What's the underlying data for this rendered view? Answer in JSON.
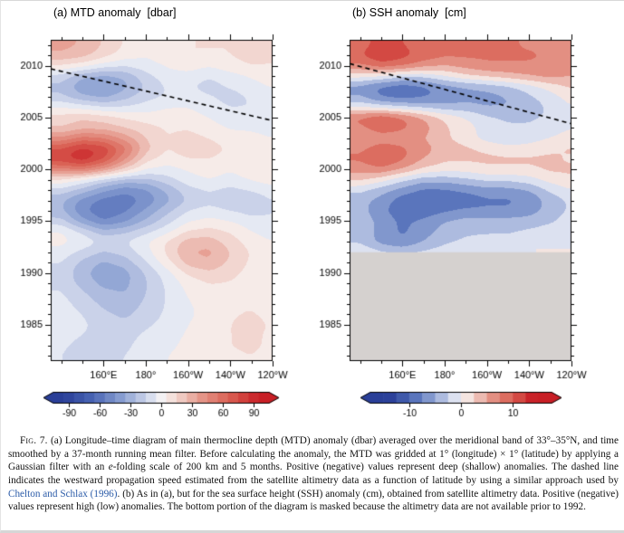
{
  "colors": {
    "link": "#2b5ba8",
    "mask_gray": "#d5d1cf",
    "frame": "#000000",
    "colormap_stops": [
      {
        "v": -1.0,
        "c": "#2a3f98"
      },
      {
        "v": -0.7,
        "c": "#4a66b4"
      },
      {
        "v": -0.4,
        "c": "#8ba0d2"
      },
      {
        "v": -0.15,
        "c": "#ccd4ea"
      },
      {
        "v": -0.02,
        "c": "#eef0f6"
      },
      {
        "v": 0.02,
        "c": "#f7f2ef"
      },
      {
        "v": 0.15,
        "c": "#f2d8d2"
      },
      {
        "v": 0.4,
        "c": "#e5988b"
      },
      {
        "v": 0.7,
        "c": "#d95f52"
      },
      {
        "v": 1.0,
        "c": "#c81f26"
      }
    ]
  },
  "caption": {
    "segments": [
      {
        "text": "Fig. 7.",
        "style": "smallcaps"
      },
      {
        "text": " (a) Longitude–time diagram of main thermocline depth (MTD) anomaly (dbar) averaged over the meridional band of 33°–35°N, and time smoothed by a 37-month running mean filter. Before calculating the anomaly, the MTD was gridded at 1° (longitude) × 1° (latitude) by applying a Gaussian filter with an ",
        "style": "normal"
      },
      {
        "text": "e",
        "style": "italic"
      },
      {
        "text": "-folding scale of 200 km and 5 months. Positive (negative) values represent deep (shallow) anomalies. The dashed line indicates the westward propagation speed estimated from the satellite altimetry data as a function of latitude by using a similar approach used by ",
        "style": "normal"
      },
      {
        "text": "Chelton and Schlax (1996)",
        "style": "link"
      },
      {
        "text": ". (b) As in (a), but for the sea surface height (SSH) anomaly (cm), obtained from satellite altimetry data. Positive (negative) values represent high (low) anomalies. The bottom portion of the diagram is masked because the altimetry data are not available prior to 1992.",
        "style": "normal"
      }
    ]
  },
  "chart_data": [
    {
      "type": "heatmap",
      "title": "(a) MTD anomaly  [dbar]",
      "units": "dbar",
      "x_range": [
        135,
        240
      ],
      "y_range": [
        1981.5,
        2012.5
      ],
      "x_ticks": {
        "values": [
          160,
          180,
          200,
          220,
          240
        ],
        "labels": [
          "160°E",
          "180°",
          "160°W",
          "140°W",
          "120°W"
        ]
      },
      "y_ticks": [
        1985,
        1990,
        1995,
        2000,
        2005,
        2010
      ],
      "lons": [
        140,
        150,
        160,
        170,
        180,
        190,
        200,
        210,
        220,
        230,
        240
      ],
      "years": [
        1981,
        1982,
        1983,
        1984,
        1985,
        1986,
        1987,
        1988,
        1989,
        1990,
        1991,
        1992,
        1993,
        1994,
        1995,
        1996,
        1997,
        1998,
        1999,
        2000,
        2001,
        2002,
        2003,
        2004,
        2005,
        2006,
        2007,
        2008,
        2009,
        2010,
        2011,
        2012
      ],
      "values": [
        [
          -8,
          -12,
          -12,
          -8,
          -4,
          0,
          2,
          4,
          6,
          8,
          6
        ],
        [
          -10,
          -15,
          -15,
          -10,
          -5,
          0,
          3,
          5,
          8,
          10,
          6
        ],
        [
          -8,
          -14,
          -16,
          -12,
          -6,
          -2,
          2,
          6,
          10,
          12,
          8
        ],
        [
          -5,
          -10,
          -15,
          -14,
          -8,
          -3,
          1,
          5,
          10,
          12,
          8
        ],
        [
          -3,
          -8,
          -14,
          -18,
          -12,
          -6,
          0,
          5,
          10,
          13,
          9
        ],
        [
          -4,
          -10,
          -18,
          -22,
          -16,
          -8,
          -2,
          4,
          9,
          11,
          7
        ],
        [
          -6,
          -14,
          -22,
          -26,
          -18,
          -9,
          -1,
          4,
          8,
          9,
          5
        ],
        [
          -9,
          -18,
          -27,
          -30,
          -20,
          -9,
          1,
          6,
          7,
          7,
          4
        ],
        [
          -12,
          -24,
          -33,
          -33,
          -21,
          -8,
          4,
          10,
          9,
          6,
          2
        ],
        [
          -13,
          -27,
          -37,
          -34,
          -19,
          -4,
          12,
          18,
          13,
          6,
          1
        ],
        [
          -10,
          -23,
          -32,
          -26,
          -11,
          6,
          24,
          28,
          18,
          8,
          1
        ],
        [
          -4,
          -13,
          -21,
          -16,
          -4,
          12,
          30,
          33,
          20,
          9,
          3
        ],
        [
          3,
          -3,
          -11,
          -10,
          -1,
          11,
          25,
          26,
          15,
          5,
          0
        ],
        [
          1,
          -12,
          -26,
          -22,
          -13,
          -3,
          11,
          14,
          9,
          0,
          -4
        ],
        [
          -16,
          -36,
          -50,
          -42,
          -28,
          -14,
          -1,
          3,
          0,
          -6,
          -9
        ],
        [
          -28,
          -48,
          -58,
          -52,
          -38,
          -23,
          -10,
          -5,
          -10,
          -14,
          -10
        ],
        [
          -28,
          -44,
          -54,
          -57,
          -47,
          -33,
          -19,
          -14,
          -19,
          -18,
          -10
        ],
        [
          -14,
          -24,
          -38,
          -47,
          -42,
          -28,
          -14,
          -9,
          -13,
          -9,
          -4
        ],
        [
          8,
          -2,
          -14,
          -23,
          -23,
          -14,
          -4,
          0,
          -4,
          1,
          5
        ],
        [
          48,
          52,
          38,
          18,
          0,
          -4,
          1,
          5,
          1,
          6,
          9
        ],
        [
          78,
          88,
          72,
          42,
          14,
          5,
          10,
          10,
          6,
          9,
          9
        ],
        [
          72,
          84,
          78,
          54,
          24,
          10,
          15,
          14,
          9,
          9,
          5
        ],
        [
          42,
          54,
          50,
          36,
          20,
          10,
          14,
          10,
          5,
          4,
          0
        ],
        [
          20,
          26,
          26,
          20,
          14,
          9,
          9,
          4,
          -1,
          -2,
          -5
        ],
        [
          14,
          19,
          15,
          9,
          5,
          4,
          4,
          0,
          -6,
          -6,
          -9
        ],
        [
          0,
          -4,
          -9,
          -9,
          -5,
          0,
          0,
          -5,
          -10,
          -10,
          -9
        ],
        [
          -18,
          -28,
          -33,
          -24,
          -14,
          -9,
          -5,
          -9,
          -14,
          -9,
          -4
        ],
        [
          -23,
          -38,
          -43,
          -33,
          -19,
          -9,
          -9,
          -14,
          -9,
          -4,
          1
        ],
        [
          -14,
          -28,
          -33,
          -28,
          -14,
          -4,
          -4,
          -9,
          -4,
          1,
          6
        ],
        [
          9,
          4,
          -5,
          -9,
          -4,
          1,
          5,
          1,
          6,
          10,
          10
        ],
        [
          28,
          24,
          14,
          5,
          1,
          5,
          10,
          10,
          10,
          14,
          10
        ],
        [
          33,
          29,
          19,
          9,
          5,
          5,
          10,
          10,
          10,
          14,
          10
        ]
      ],
      "contour_interval": 10,
      "value_max": 95,
      "colorbar": {
        "half_range": 105,
        "ticks": [
          -90,
          -60,
          -30,
          0,
          30,
          60,
          90
        ]
      },
      "dashed_line": {
        "year_at_west": 2009.7,
        "year_at_east": 2004.7
      },
      "mask_before_year": null
    },
    {
      "type": "heatmap",
      "title": "(b) SSH anomaly  [cm]",
      "units": "cm",
      "x_range": [
        135,
        240
      ],
      "y_range": [
        1981.5,
        2012.5
      ],
      "x_ticks": {
        "values": [
          160,
          180,
          200,
          220,
          240
        ],
        "labels": [
          "160°E",
          "180°",
          "160°W",
          "140°W",
          "120°W"
        ]
      },
      "y_ticks": [
        1985,
        1990,
        1995,
        2000,
        2005,
        2010
      ],
      "lons": [
        140,
        150,
        160,
        170,
        180,
        190,
        200,
        210,
        220,
        230,
        240
      ],
      "years": [
        1981,
        1982,
        1983,
        1984,
        1985,
        1986,
        1987,
        1988,
        1989,
        1990,
        1991,
        1992,
        1993,
        1994,
        1995,
        1996,
        1997,
        1998,
        1999,
        2000,
        2001,
        2002,
        2003,
        2004,
        2005,
        2006,
        2007,
        2008,
        2009,
        2010,
        2011,
        2012
      ],
      "values": [
        [
          0,
          0,
          0,
          0,
          0,
          0,
          0,
          0,
          0,
          0,
          0
        ],
        [
          0,
          0,
          0,
          0,
          0,
          0,
          0,
          0,
          0,
          0,
          0
        ],
        [
          0,
          0,
          0,
          0,
          0,
          0,
          0,
          0,
          0,
          0,
          0
        ],
        [
          0,
          0,
          0,
          0,
          0,
          0,
          0,
          0,
          0,
          0,
          0
        ],
        [
          0,
          0,
          0,
          0,
          0,
          0,
          0,
          0,
          0,
          0,
          0
        ],
        [
          0,
          0,
          0,
          0,
          0,
          0,
          0,
          0,
          0,
          0,
          0
        ],
        [
          0,
          0,
          0,
          0,
          0,
          0,
          0,
          0,
          0,
          0,
          0
        ],
        [
          0,
          0,
          0,
          0,
          0,
          0,
          0,
          0,
          0,
          0,
          0
        ],
        [
          0,
          0,
          0,
          0,
          0,
          0,
          0,
          0,
          0,
          0,
          0
        ],
        [
          0,
          0,
          0,
          0,
          0,
          0,
          0,
          0,
          0,
          0,
          0
        ],
        [
          0,
          0,
          0,
          0,
          0,
          0,
          0,
          0,
          0,
          0,
          0
        ],
        [
          0,
          -2,
          -3,
          -2,
          -1,
          0,
          0,
          0,
          0,
          0,
          0
        ],
        [
          -3,
          -6,
          -7,
          -5,
          -3,
          -2,
          -1,
          -1,
          0,
          0,
          0
        ],
        [
          -3,
          -6,
          -8,
          -6,
          -4,
          -3,
          -3,
          -3,
          -2,
          -1,
          -1
        ],
        [
          -3,
          -6,
          -8,
          -7,
          -5,
          -4,
          -4,
          -4,
          -4,
          -3,
          -1
        ],
        [
          -4,
          -7,
          -9,
          -9,
          -8,
          -7,
          -7,
          -7,
          -6,
          -4,
          -2
        ],
        [
          -4,
          -6,
          -9,
          -10,
          -9,
          -9,
          -8,
          -8,
          -7,
          -4,
          -2
        ],
        [
          -2,
          -4,
          -6,
          -8,
          -8,
          -7,
          -6,
          -6,
          -5,
          -2,
          0
        ],
        [
          3,
          1,
          -2,
          -4,
          -4,
          -3,
          -2,
          -2,
          -1,
          1,
          2
        ],
        [
          6,
          7,
          5,
          2,
          1,
          1,
          2,
          2,
          2,
          3,
          3
        ],
        [
          8,
          10,
          8,
          5,
          3,
          3,
          3,
          3,
          3,
          3,
          2
        ],
        [
          7,
          9,
          8,
          6,
          4,
          3,
          2,
          1,
          1,
          2,
          3
        ],
        [
          5,
          6,
          6,
          5,
          3,
          1,
          -1,
          -2,
          -1,
          0,
          1
        ],
        [
          7,
          9,
          8,
          6,
          3,
          1,
          -1,
          -2,
          -2,
          -1,
          0
        ],
        [
          8,
          10,
          8,
          5,
          2,
          0,
          -2,
          -3,
          -3,
          -2,
          -1
        ],
        [
          0,
          -1,
          -2,
          -3,
          -4,
          -4,
          -5,
          -5,
          -4,
          -2,
          0
        ],
        [
          -5,
          -8,
          -9,
          -8,
          -7,
          -6,
          -6,
          -5,
          -3,
          -1,
          1
        ],
        [
          -6,
          -8,
          -9,
          -8,
          -6,
          -5,
          -4,
          -3,
          -1,
          1,
          3
        ],
        [
          1,
          0,
          -2,
          -2,
          0,
          2,
          3,
          4,
          5,
          6,
          5
        ],
        [
          7,
          9,
          8,
          6,
          5,
          6,
          7,
          7,
          7,
          7,
          6
        ],
        [
          10,
          12,
          11,
          9,
          8,
          8,
          8,
          8,
          8,
          7,
          6
        ],
        [
          9,
          11,
          10,
          9,
          8,
          8,
          8,
          8,
          7,
          7,
          6
        ]
      ],
      "contour_interval": 2.5,
      "value_max": 14,
      "colorbar": {
        "half_range": 17.5,
        "ticks": [
          -10,
          0,
          10
        ]
      },
      "dashed_line": {
        "year_at_west": 2010.2,
        "year_at_east": 2004.4
      },
      "mask_before_year": 1992
    }
  ]
}
